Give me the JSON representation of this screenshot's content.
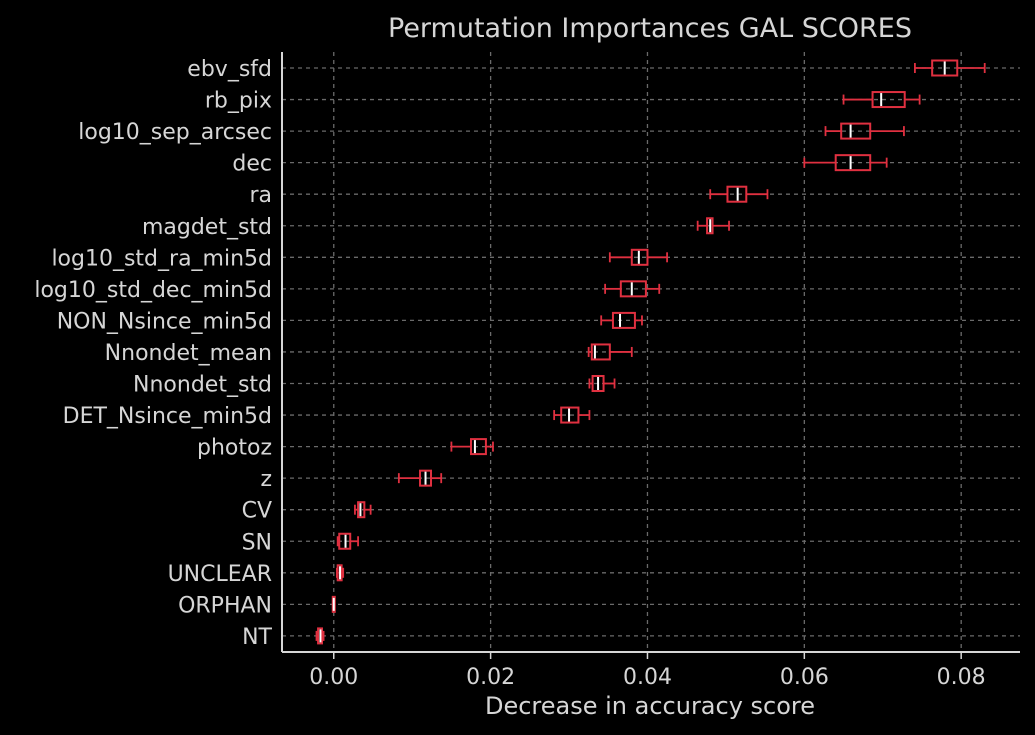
{
  "chart_data": {
    "type": "box",
    "title": "Permutation Importances GAL SCORES",
    "xlabel": "Decrease in accuracy score",
    "ylabel": "",
    "xlim": [
      -0.0066,
      0.0875
    ],
    "xticks": [
      0.0,
      0.02,
      0.04,
      0.06,
      0.08
    ],
    "xtick_labels": [
      "0.00",
      "0.02",
      "0.04",
      "0.06",
      "0.08"
    ],
    "grid": true,
    "colors": {
      "background": "#000000",
      "box": "#e03040",
      "median": "#ffffff",
      "text": "#d6d6d6",
      "grid": "#6a6a6a"
    },
    "categories": [
      "ebv_sfd",
      "rb_pix",
      "log10_sep_arcsec",
      "dec",
      "ra",
      "magdet_std",
      "log10_std_ra_min5d",
      "log10_std_dec_min5d",
      "NON_Nsince_min5d",
      "Nnondet_mean",
      "Nnondet_std",
      "DET_Nsince_min5d",
      "photoz",
      "z",
      "CV",
      "SN",
      "UNCLEAR",
      "ORPHAN",
      "NT"
    ],
    "boxes": [
      {
        "label": "ebv_sfd",
        "whislo": 0.0741,
        "q1": 0.0763,
        "med": 0.0779,
        "q3": 0.0795,
        "whishi": 0.083
      },
      {
        "label": "rb_pix",
        "whislo": 0.065,
        "q1": 0.0687,
        "med": 0.0698,
        "q3": 0.0728,
        "whishi": 0.0747
      },
      {
        "label": "log10_sep_arcsec",
        "whislo": 0.0627,
        "q1": 0.0647,
        "med": 0.0659,
        "q3": 0.0684,
        "whishi": 0.0727
      },
      {
        "label": "dec",
        "whislo": 0.06,
        "q1": 0.064,
        "med": 0.0659,
        "q3": 0.0684,
        "whishi": 0.0705
      },
      {
        "label": "ra",
        "whislo": 0.048,
        "q1": 0.0502,
        "med": 0.0515,
        "q3": 0.0526,
        "whishi": 0.0553
      },
      {
        "label": "magdet_std",
        "whislo": 0.0464,
        "q1": 0.0476,
        "med": 0.048,
        "q3": 0.0483,
        "whishi": 0.0504
      },
      {
        "label": "log10_std_ra_min5d",
        "whislo": 0.0352,
        "q1": 0.038,
        "med": 0.0389,
        "q3": 0.04,
        "whishi": 0.0425
      },
      {
        "label": "log10_std_dec_min5d",
        "whislo": 0.0346,
        "q1": 0.0366,
        "med": 0.038,
        "q3": 0.0398,
        "whishi": 0.0415
      },
      {
        "label": "NON_Nsince_min5d",
        "whislo": 0.0341,
        "q1": 0.0356,
        "med": 0.0365,
        "q3": 0.0384,
        "whishi": 0.0393
      },
      {
        "label": "Nnondet_mean",
        "whislo": 0.0325,
        "q1": 0.0329,
        "med": 0.0333,
        "q3": 0.0352,
        "whishi": 0.038
      },
      {
        "label": "Nnondet_std",
        "whislo": 0.0326,
        "q1": 0.033,
        "med": 0.0337,
        "q3": 0.0344,
        "whishi": 0.0358
      },
      {
        "label": "DET_Nsince_min5d",
        "whislo": 0.0281,
        "q1": 0.029,
        "med": 0.03,
        "q3": 0.0312,
        "whishi": 0.0326
      },
      {
        "label": "photoz",
        "whislo": 0.015,
        "q1": 0.0175,
        "med": 0.018,
        "q3": 0.0194,
        "whishi": 0.0203
      },
      {
        "label": "z",
        "whislo": 0.0083,
        "q1": 0.011,
        "med": 0.0117,
        "q3": 0.0124,
        "whishi": 0.0137
      },
      {
        "label": "CV",
        "whislo": 0.0027,
        "q1": 0.0031,
        "med": 0.0034,
        "q3": 0.0039,
        "whishi": 0.0047
      },
      {
        "label": "SN",
        "whislo": 0.0005,
        "q1": 0.0007,
        "med": 0.0015,
        "q3": 0.0021,
        "whishi": 0.0031
      },
      {
        "label": "UNCLEAR",
        "whislo": 0.0004,
        "q1": 0.0005,
        "med": 0.0008,
        "q3": 0.001,
        "whishi": 0.0012
      },
      {
        "label": "ORPHAN",
        "whislo": 0.0,
        "q1": 0.0,
        "med": 0.0,
        "q3": 0.0,
        "whishi": 0.0
      },
      {
        "label": "NT",
        "whislo": -0.0022,
        "q1": -0.002,
        "med": -0.0017,
        "q3": -0.0015,
        "whishi": -0.0013
      }
    ]
  }
}
